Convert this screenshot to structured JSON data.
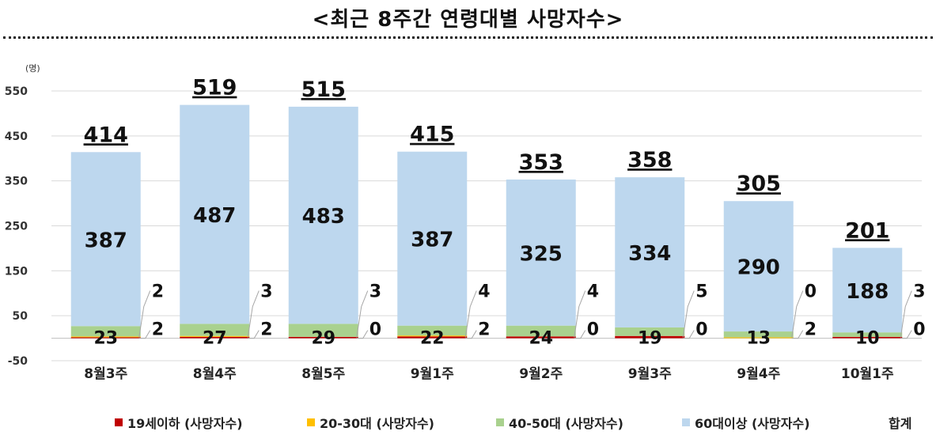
{
  "title": "<최근 8주간 연령대별 사망자수>",
  "chart_data": {
    "type": "bar",
    "stacked": true,
    "unit_label": "(명)",
    "ylim": [
      -50,
      550
    ],
    "yticks": [
      550,
      450,
      350,
      250,
      150,
      50,
      -50
    ],
    "categories": [
      "8월3주",
      "8월4주",
      "8월5주",
      "9월1주",
      "9월2주",
      "9월3주",
      "9월4주",
      "10월1주"
    ],
    "series": [
      {
        "name": "19세이하 (사망자수)",
        "color": "#c00000",
        "values": [
          2,
          3,
          3,
          4,
          4,
          5,
          0,
          3
        ]
      },
      {
        "name": "20-30대 (사망자수)",
        "color": "#ffc000",
        "values": [
          2,
          2,
          0,
          2,
          0,
          0,
          2,
          0
        ]
      },
      {
        "name": "40-50대 (사망자수)",
        "color": "#a9d18e",
        "values": [
          23,
          27,
          29,
          22,
          24,
          19,
          13,
          10
        ]
      },
      {
        "name": "60대이상 (사망자수)",
        "color": "#bdd7ee",
        "values": [
          387,
          487,
          483,
          387,
          325,
          334,
          290,
          188
        ]
      }
    ],
    "totals_label": "합계",
    "totals": [
      414,
      519,
      515,
      415,
      353,
      358,
      305,
      201
    ],
    "grid": true,
    "legend_position": "bottom"
  }
}
